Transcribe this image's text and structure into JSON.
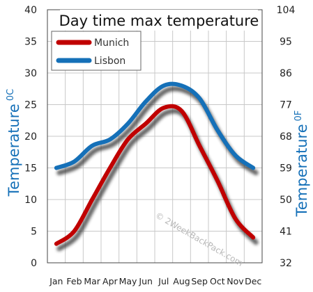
{
  "chart_data": {
    "type": "line",
    "title": "Day time max temperature",
    "categories": [
      "Jan",
      "Feb",
      "Mar",
      "Apr",
      "May",
      "Jun",
      "Jul",
      "Aug",
      "Sep",
      "Oct",
      "Nov",
      "Dec"
    ],
    "series": [
      {
        "name": "Munich",
        "color": "#c00000",
        "values": [
          3,
          5,
          10,
          15,
          19.5,
          22,
          24.5,
          24,
          18.5,
          13,
          7,
          4
        ]
      },
      {
        "name": "Lisbon",
        "color": "#1570b8",
        "values": [
          15,
          16,
          18.5,
          19.5,
          22,
          25.5,
          28,
          28,
          26,
          21,
          17,
          15
        ]
      }
    ],
    "ylabel_left": "Temperature",
    "ylabel_left_unit": "0C",
    "ylabel_right": "Temperature",
    "ylabel_right_unit": "0F",
    "yticks_left": [
      "40",
      "35",
      "30",
      "25",
      "20",
      "15",
      "10",
      "5",
      "0"
    ],
    "yticks_right": [
      "104",
      "95",
      "86",
      "77",
      "68",
      "59",
      "50",
      "41",
      "32"
    ],
    "ylim": [
      0,
      40
    ],
    "grid": true,
    "legend_position": "top-left",
    "watermark": "© 2WeekBackPack.com"
  }
}
